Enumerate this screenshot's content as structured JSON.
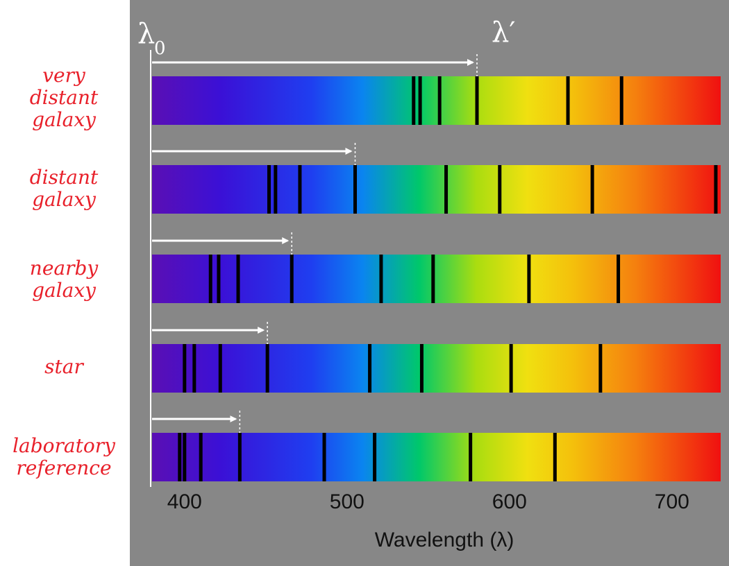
{
  "colors": {
    "panel": "#878787",
    "label": "#e8202a",
    "arrow": "#ffffff",
    "line": "#000000"
  },
  "lambda0": {
    "symbol": "λ",
    "subscript": "0"
  },
  "lambda_prime": "λ′",
  "axis": {
    "label": "Wavelength (λ)",
    "ticks": [
      "400",
      "500",
      "600",
      "700"
    ],
    "range_nm": [
      380,
      730
    ]
  },
  "spectra": [
    {
      "label_lines": [
        "very",
        "distant",
        "galaxy"
      ],
      "marker_nm": 580,
      "lines_nm": [
        541,
        545,
        557,
        580,
        636,
        669
      ]
    },
    {
      "label_lines": [
        "distant",
        "galaxy"
      ],
      "marker_nm": 505,
      "lines_nm": [
        452,
        456,
        471,
        505,
        561,
        594,
        651,
        727
      ]
    },
    {
      "label_lines": [
        "nearby",
        "galaxy"
      ],
      "marker_nm": 466,
      "lines_nm": [
        416,
        421,
        433,
        466,
        521,
        553,
        612,
        667
      ]
    },
    {
      "label_lines": [
        "star"
      ],
      "marker_nm": 451,
      "lines_nm": [
        400,
        406,
        422,
        451,
        514,
        546,
        601,
        656
      ]
    },
    {
      "label_lines": [
        "laboratory",
        "reference"
      ],
      "marker_nm": 434,
      "lines_nm": [
        397,
        400,
        410,
        434,
        486,
        517,
        576,
        628
      ]
    }
  ]
}
